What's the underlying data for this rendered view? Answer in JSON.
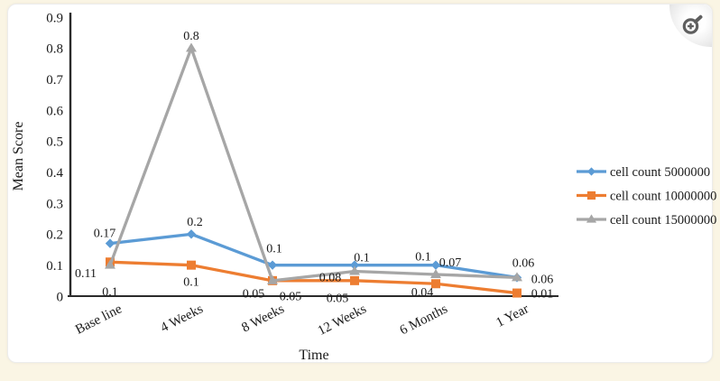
{
  "page": {
    "background_color": "#FAF5E4",
    "card_background_color": "#FFFFFF"
  },
  "zoom_button": {
    "icon": "magnifier-plus-icon"
  },
  "chart_data": {
    "type": "line",
    "title": "",
    "xlabel": "Time",
    "ylabel": "Mean Score",
    "categories": [
      "Base line",
      "4 Weeks",
      "8 Weeks",
      "12 Weeks",
      "6 Months",
      "1 Year"
    ],
    "y_ticks": [
      "0",
      "0.1",
      "0.2",
      "0.3",
      "0.4",
      "0.5",
      "0.6",
      "0.7",
      "0.8",
      "0.9"
    ],
    "ylim": [
      0,
      0.9
    ],
    "grid": false,
    "legend_position": "right",
    "axis_color": "#2b2b2b",
    "label_color": "#1f1f1f",
    "series": [
      {
        "name": "cell count 5000000",
        "color": "#5B9BD5",
        "marker": "diamond",
        "values": [
          0.17,
          0.2,
          0.1,
          0.1,
          0.1,
          0.06
        ],
        "labels": [
          "0.17",
          "0.2",
          "0.1",
          "0.1",
          "0.1",
          "0.06"
        ],
        "label_offsets": [
          [
            -6,
            -12
          ],
          [
            4,
            -14
          ],
          [
            2,
            -19
          ],
          [
            8,
            -9
          ],
          [
            -14,
            -10
          ],
          [
            7,
            -17
          ]
        ]
      },
      {
        "name": "cell count 10000000",
        "color": "#ED7D31",
        "marker": "square",
        "values": [
          0.11,
          0.1,
          0.05,
          0.05,
          0.04,
          0.01
        ],
        "labels": [
          "0.11",
          "0.1",
          "0.05",
          "0.05",
          "0.04",
          "0.01"
        ],
        "label_offsets": [
          [
            -27,
            12
          ],
          [
            0,
            18
          ],
          [
            -21,
            14
          ],
          [
            -19,
            19
          ],
          [
            -15,
            9
          ],
          [
            28,
            0
          ]
        ]
      },
      {
        "name": "cell count 15000000",
        "color": "#A6A6A6",
        "marker": "triangle",
        "values": [
          0.1,
          0.8,
          0.05,
          0.08,
          0.07,
          0.06
        ],
        "labels": [
          "0.1",
          "0.8",
          "0.05",
          "0.08",
          "0.07",
          "0.06"
        ],
        "label_offsets": [
          [
            0,
            29
          ],
          [
            0,
            -14
          ],
          [
            20,
            17
          ],
          [
            -27,
            6
          ],
          [
            16,
            -14
          ],
          [
            28,
            1
          ]
        ]
      }
    ]
  }
}
